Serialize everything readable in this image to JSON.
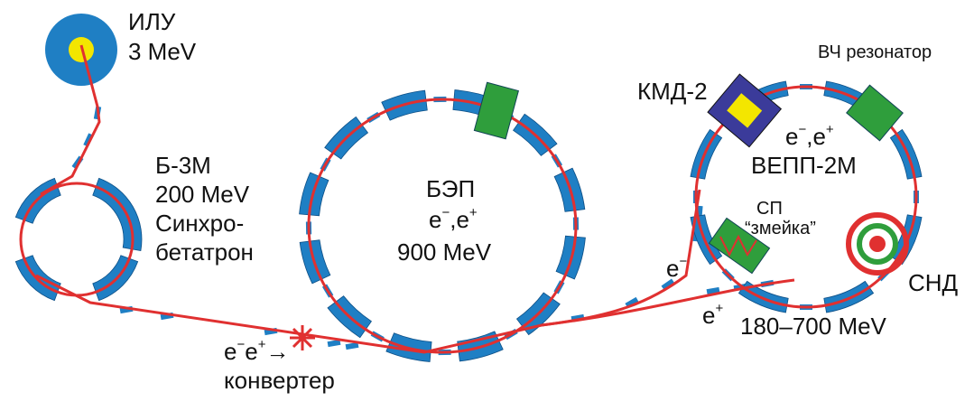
{
  "ilu": {
    "name": "ИЛУ",
    "energy": "3 MeV"
  },
  "b3m": {
    "name": "Б-3М",
    "energy": "200 MeV",
    "type_line1": "Синхро-",
    "type_line2": "бетатрон"
  },
  "bep": {
    "name": "БЭП",
    "particles": [
      {
        "text": "e",
        "sup": "−"
      },
      {
        "text": ",e",
        "sup": "+"
      }
    ],
    "energy": "900 MeV"
  },
  "vepp": {
    "name": "ВЕПП-2М",
    "particles": [
      {
        "text": "e",
        "sup": "−"
      },
      {
        "text": ",e",
        "sup": "+"
      }
    ],
    "energy": "180–700 MeV"
  },
  "detectors": {
    "kmd": "КМД-2",
    "snd": "СНД",
    "rf": "ВЧ резонатор",
    "sp": "СП",
    "snake": "“змейка”"
  },
  "beams": {
    "electron": {
      "text": "e",
      "sup": "−"
    },
    "positron": {
      "text": "e",
      "sup": "+"
    }
  },
  "converter": {
    "parts": [
      {
        "text": "e",
        "sup": "−"
      },
      {
        "text": "e",
        "sup": "+"
      }
    ],
    "arrow": "→",
    "name": "конвертер"
  }
}
